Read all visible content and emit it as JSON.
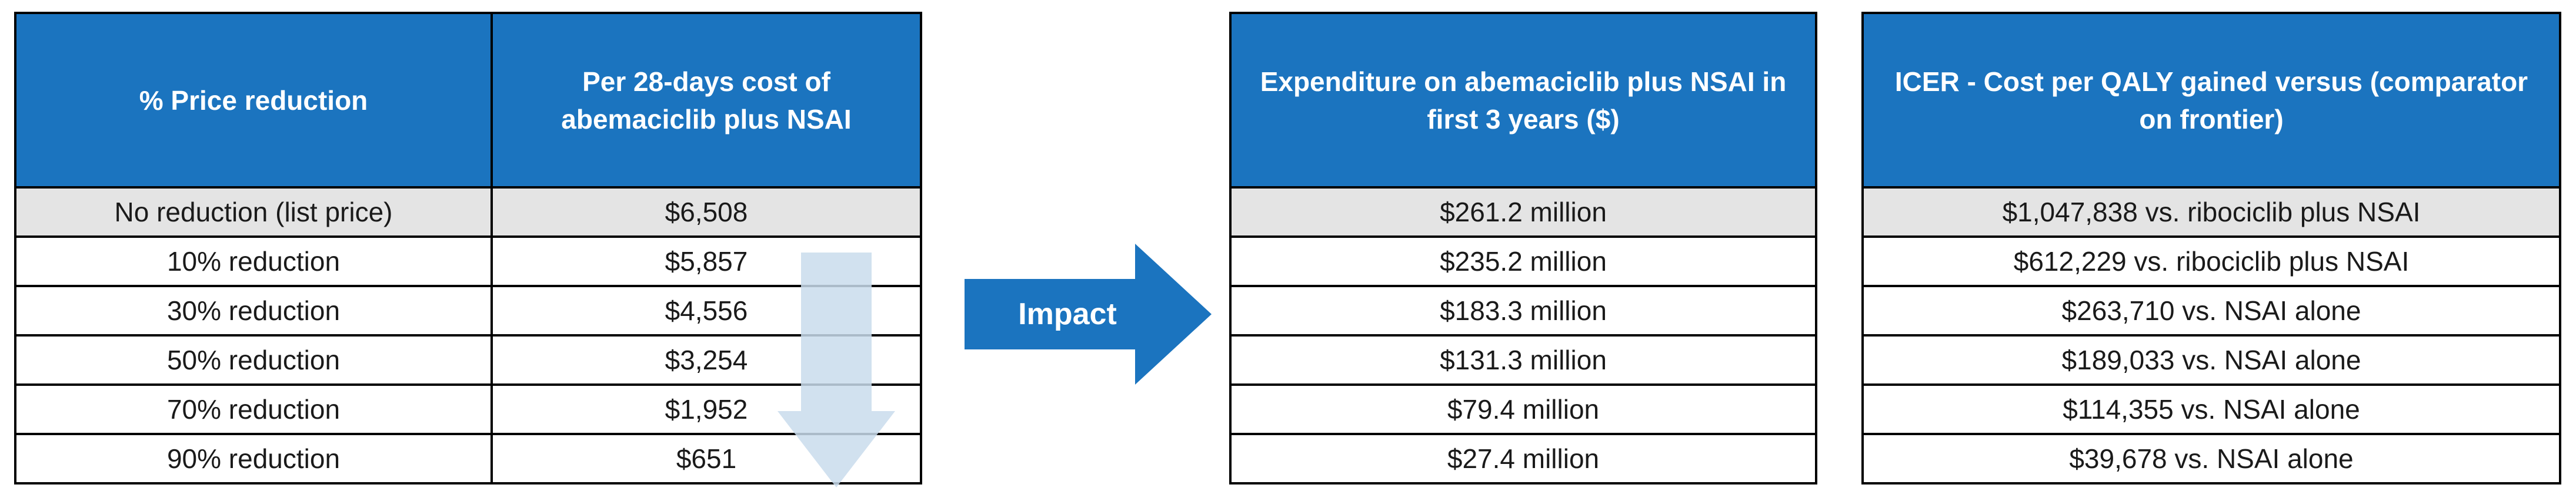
{
  "left_table": {
    "headers": [
      "% Price reduction",
      "Per 28-days cost of abemaciclib plus NSAI"
    ],
    "rows": [
      [
        "No reduction (list price)",
        "$6,508"
      ],
      [
        "10% reduction",
        "$5,857"
      ],
      [
        "30% reduction",
        "$4,556"
      ],
      [
        "50% reduction",
        "$3,254"
      ],
      [
        "70% reduction",
        "$1,952"
      ],
      [
        "90% reduction",
        "$651"
      ]
    ]
  },
  "impact_label": "Impact",
  "expenditure_table": {
    "header": "Expenditure on abemaciclib plus NSAI in first 3 years ($)",
    "rows": [
      "$261.2 million",
      "$235.2 million",
      "$183.3 million",
      "$131.3 million",
      "$79.4 million",
      "$27.4 million"
    ]
  },
  "icer_table": {
    "header": "ICER - Cost per QALY gained versus (comparator on frontier)",
    "rows": [
      "$1,047,838 vs. ribociclib plus NSAI",
      "$612,229 vs. ribociclib plus NSAI",
      "$263,710 vs. NSAI alone",
      "$189,033 vs. NSAI alone",
      "$114,355 vs. NSAI alone",
      "$39,678 vs. NSAI alone"
    ]
  },
  "colors": {
    "header_blue": "#1b74bf",
    "shaded_row": "#e4e4e4",
    "down_arrow": "#c9dcec",
    "impact_arrow": "#1b74bf"
  }
}
